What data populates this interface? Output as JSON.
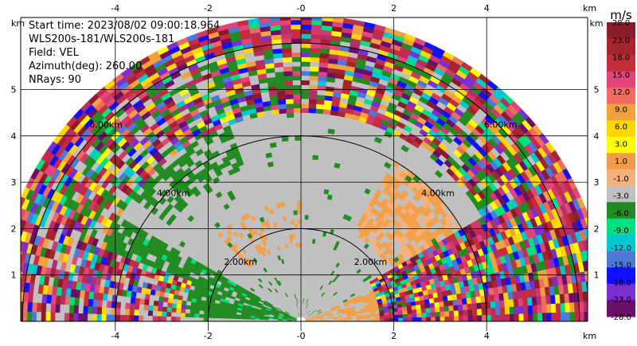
{
  "chart_data": {
    "type": "heatmap",
    "subtype": "radar-ppi-sector",
    "info": {
      "start_time": "Start time: 2023/08/02 09:00:18.964",
      "instrument": "WLS200s-181/WLS200s-181",
      "field": "Field: VEL",
      "azimuth": "Azimuth(deg): 260.00",
      "nrays": "NRays: 90"
    },
    "x_unit": "km",
    "y_unit": "km",
    "xlim": [
      -6,
      6
    ],
    "ylim": [
      0,
      6
    ],
    "x_ticks": [
      -4,
      -2,
      0,
      2,
      4
    ],
    "x_tick_labels": [
      "-4",
      "-2",
      "-0",
      "2",
      "4"
    ],
    "y_ticks": [
      1,
      2,
      3,
      4,
      5
    ],
    "y_tick_labels": [
      "1",
      "2",
      "3",
      "4",
      "5"
    ],
    "grid": true,
    "range_rings_km": [
      2,
      4,
      6
    ],
    "range_ring_labels": [
      {
        "text": "2.00km",
        "x": -1.3,
        "y": 1.22
      },
      {
        "text": "2.00km",
        "x": 1.5,
        "y": 1.22
      },
      {
        "text": "4.00km",
        "x": -2.75,
        "y": 2.7
      },
      {
        "text": "4.00km",
        "x": 2.95,
        "y": 2.7
      },
      {
        "text": "6.00km",
        "x": -4.2,
        "y": 4.18
      },
      {
        "text": "6.00km",
        "x": 4.3,
        "y": 4.18
      }
    ],
    "colorbar": {
      "unit": "m/s",
      "labels": [
        "28.0",
        "23.0",
        "18.0",
        "15.0",
        "12.0",
        "9.0",
        "6.0",
        "3.0",
        "1.0",
        "-1.0",
        "-3.0",
        "-6.0",
        "-9.0",
        "-12.0",
        "-15.0",
        "-18.0",
        "-23.0",
        "-28.0"
      ],
      "colors": [
        "#8b1a2b",
        "#a5252f",
        "#c42d3a",
        "#e0457b",
        "#ee6b5d",
        "#f2a23c",
        "#ffd700",
        "#ffff00",
        "#f29b4a",
        "#f4b17a",
        "#c0c0c0",
        "#228b22",
        "#00e080",
        "#00c8d0",
        "#4a7bd8",
        "#1010ff",
        "#7a2fd0",
        "#6a0f6a"
      ]
    }
  }
}
